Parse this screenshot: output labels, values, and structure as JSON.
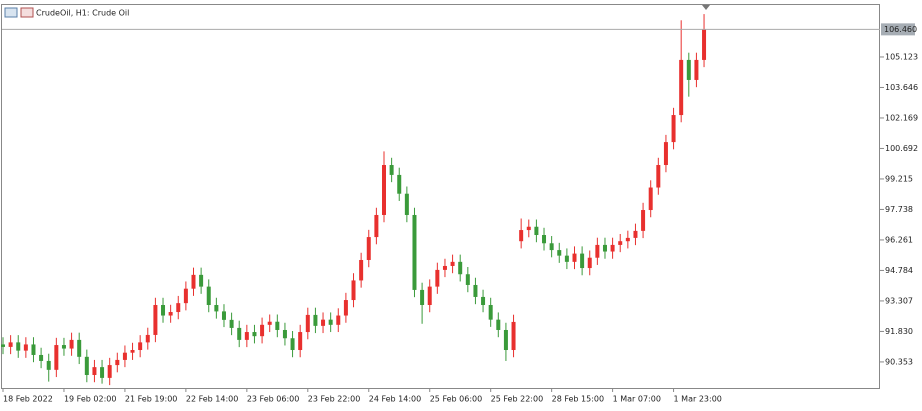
{
  "chart_data": {
    "type": "candlestick",
    "title": "CrudeOil, H1:  Crude Oil",
    "up_color": "#e8302e",
    "down_color": "#3a9a3a",
    "ylim": [
      89.09,
      107.64
    ],
    "yticks": [
      90.353,
      {
        "value": 91.83,
        "label": "91.830"
      },
      93.307,
      94.784,
      96.261,
      97.738,
      99.215,
      100.692,
      102.169,
      103.646,
      105.123
    ],
    "price_line": {
      "value": 106.46,
      "label": "106.460"
    },
    "x": [
      "18 Feb 2022",
      null,
      null,
      null,
      null,
      null,
      null,
      null,
      "19 Feb 02:00",
      null,
      null,
      null,
      null,
      null,
      null,
      null,
      "21 Feb 19:00",
      null,
      null,
      null,
      null,
      null,
      null,
      null,
      "22 Feb 14:00",
      null,
      null,
      null,
      null,
      null,
      null,
      null,
      "23 Feb 06:00",
      null,
      null,
      null,
      null,
      null,
      null,
      null,
      "23 Feb 22:00",
      null,
      null,
      null,
      null,
      null,
      null,
      null,
      "24 Feb 14:00",
      null,
      null,
      null,
      null,
      null,
      null,
      null,
      "25 Feb 06:00",
      null,
      null,
      null,
      null,
      null,
      null,
      null,
      "25 Feb 22:00",
      null,
      null,
      null,
      null,
      null,
      null,
      null,
      "28 Feb 15:00",
      null,
      null,
      null,
      null,
      null,
      null,
      null,
      "1 Mar 07:00",
      null,
      null,
      null,
      null,
      null,
      null,
      null,
      "1 Mar 23:00",
      null,
      null,
      null,
      null
    ],
    "series": [
      {
        "name": "Crude Oil",
        "ohlc": [
          [
            91.2,
            91.55,
            90.73,
            91.08
          ],
          [
            91.08,
            91.65,
            90.73,
            91.3
          ],
          [
            91.3,
            91.65,
            90.55,
            90.9
          ],
          [
            90.9,
            91.55,
            90.55,
            91.2
          ],
          [
            91.2,
            91.55,
            90.34,
            90.69
          ],
          [
            90.69,
            91.04,
            90.05,
            90.4
          ],
          [
            90.4,
            90.75,
            89.4,
            89.97
          ],
          [
            89.97,
            91.52,
            89.62,
            91.17
          ],
          [
            91.17,
            91.52,
            90.65,
            91.0
          ],
          [
            91.0,
            91.77,
            90.65,
            91.42
          ],
          [
            91.42,
            91.77,
            90.25,
            90.6
          ],
          [
            90.6,
            90.95,
            89.37,
            89.72
          ],
          [
            89.72,
            90.45,
            89.37,
            90.1
          ],
          [
            90.1,
            90.45,
            89.3,
            89.58
          ],
          [
            89.58,
            90.55,
            89.23,
            90.2
          ],
          [
            90.2,
            90.8,
            89.85,
            90.45
          ],
          [
            90.45,
            91.15,
            90.1,
            90.8
          ],
          [
            90.8,
            91.28,
            90.45,
            90.93
          ],
          [
            90.93,
            91.65,
            90.58,
            91.3
          ],
          [
            91.3,
            92.01,
            90.95,
            91.66
          ],
          [
            91.66,
            93.46,
            91.31,
            93.11
          ],
          [
            93.11,
            93.46,
            92.25,
            92.6
          ],
          [
            92.6,
            93.12,
            92.25,
            92.77
          ],
          [
            92.77,
            93.55,
            92.42,
            93.2
          ],
          [
            93.2,
            94.25,
            92.85,
            93.9
          ],
          [
            93.9,
            94.92,
            93.55,
            94.57
          ],
          [
            94.57,
            94.92,
            93.65,
            94.0
          ],
          [
            94.0,
            94.35,
            92.76,
            93.11
          ],
          [
            93.11,
            93.46,
            92.45,
            92.8
          ],
          [
            92.8,
            93.15,
            92.04,
            92.39
          ],
          [
            92.39,
            92.74,
            91.65,
            92.0
          ],
          [
            92.0,
            92.35,
            91.07,
            91.42
          ],
          [
            91.42,
            92.15,
            91.07,
            91.8
          ],
          [
            91.8,
            92.15,
            91.25,
            91.6
          ],
          [
            91.6,
            92.5,
            91.25,
            92.15
          ],
          [
            92.15,
            92.65,
            91.8,
            92.3
          ],
          [
            92.3,
            92.65,
            91.55,
            91.9
          ],
          [
            91.9,
            92.25,
            91.15,
            91.5
          ],
          [
            91.5,
            91.85,
            90.58,
            90.93
          ],
          [
            90.93,
            92.15,
            90.58,
            91.8
          ],
          [
            91.8,
            92.98,
            91.45,
            92.63
          ],
          [
            92.63,
            92.98,
            91.75,
            92.1
          ],
          [
            92.1,
            92.75,
            91.75,
            92.4
          ],
          [
            92.4,
            92.75,
            91.8,
            92.15
          ],
          [
            92.15,
            92.95,
            91.8,
            92.6
          ],
          [
            92.6,
            93.7,
            92.25,
            93.35
          ],
          [
            93.35,
            94.65,
            93.0,
            94.3
          ],
          [
            94.3,
            95.64,
            93.95,
            95.29
          ],
          [
            95.29,
            96.75,
            94.94,
            96.4
          ],
          [
            96.4,
            97.82,
            96.05,
            97.47
          ],
          [
            97.47,
            100.55,
            97.12,
            99.89
          ],
          [
            99.89,
            100.24,
            99.06,
            99.41
          ],
          [
            99.41,
            99.76,
            98.15,
            98.5
          ],
          [
            98.5,
            98.85,
            97.12,
            97.47
          ],
          [
            97.47,
            97.82,
            93.49,
            93.84
          ],
          [
            93.84,
            94.19,
            92.2,
            93.11
          ],
          [
            93.11,
            94.35,
            92.76,
            94.0
          ],
          [
            94.0,
            95.16,
            93.65,
            94.81
          ],
          [
            94.81,
            95.35,
            94.46,
            95.0
          ],
          [
            95.0,
            95.55,
            94.65,
            95.2
          ],
          [
            95.2,
            95.55,
            94.25,
            94.6
          ],
          [
            94.6,
            94.95,
            93.73,
            94.08
          ],
          [
            94.08,
            94.43,
            93.15,
            93.5
          ],
          [
            93.5,
            93.85,
            92.76,
            93.11
          ],
          [
            93.11,
            93.46,
            92.05,
            92.4
          ],
          [
            92.4,
            92.75,
            91.55,
            91.9
          ],
          [
            91.9,
            92.25,
            90.4,
            90.93
          ],
          [
            90.93,
            92.64,
            90.58,
            92.29
          ],
          [
            96.2,
            97.3,
            95.85,
            96.74
          ],
          [
            96.74,
            97.25,
            96.39,
            96.9
          ],
          [
            96.9,
            97.25,
            96.15,
            96.5
          ],
          [
            96.5,
            96.85,
            95.75,
            96.1
          ],
          [
            96.1,
            96.45,
            95.42,
            95.77
          ],
          [
            95.77,
            96.12,
            95.15,
            95.5
          ],
          [
            95.5,
            95.85,
            94.85,
            95.2
          ],
          [
            95.2,
            95.95,
            94.85,
            95.6
          ],
          [
            95.6,
            95.95,
            94.55,
            94.9
          ],
          [
            94.9,
            95.75,
            94.55,
            95.4
          ],
          [
            95.4,
            96.37,
            95.05,
            96.02
          ],
          [
            96.02,
            96.37,
            95.35,
            95.7
          ],
          [
            95.7,
            96.37,
            95.35,
            96.02
          ],
          [
            96.02,
            96.55,
            95.67,
            96.2
          ],
          [
            96.2,
            96.71,
            95.85,
            96.36
          ],
          [
            96.36,
            97.05,
            96.01,
            96.7
          ],
          [
            96.7,
            98.06,
            96.35,
            97.71
          ],
          [
            97.71,
            99.15,
            97.36,
            98.8
          ],
          [
            98.8,
            100.24,
            98.45,
            99.89
          ],
          [
            99.89,
            101.35,
            99.54,
            101.0
          ],
          [
            101.0,
            102.66,
            100.65,
            102.31
          ],
          [
            102.31,
            106.9,
            101.96,
            104.98
          ],
          [
            104.98,
            105.33,
            103.2,
            104.01
          ],
          [
            104.01,
            105.33,
            103.66,
            104.98
          ],
          [
            104.98,
            107.2,
            104.63,
            106.46
          ]
        ]
      }
    ]
  }
}
